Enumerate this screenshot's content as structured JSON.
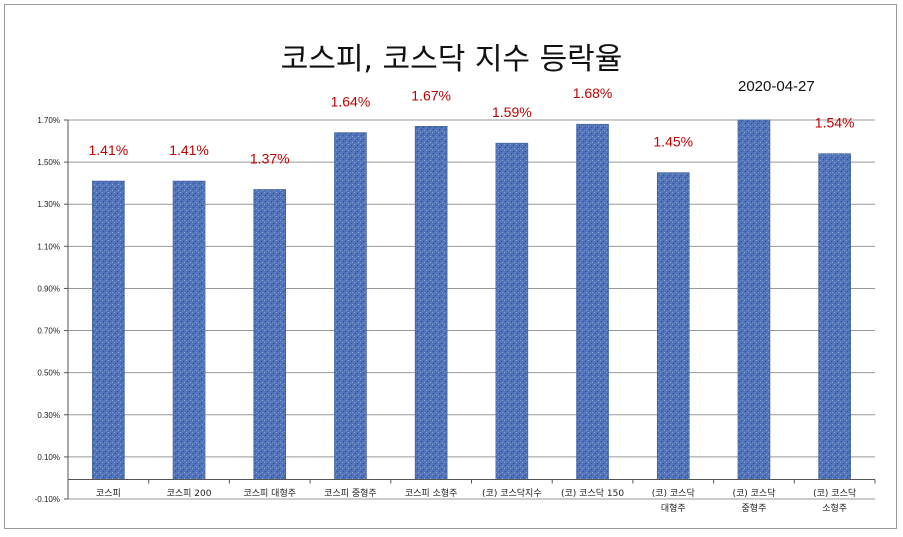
{
  "chart_data": {
    "type": "bar",
    "title": "코스피, 코스닥 지수 등락율",
    "subtitle": "2020-04-27",
    "xlabel": "",
    "ylabel": "",
    "ylim": [
      -0.1,
      1.7
    ],
    "y_ticks": [
      "-0.10%",
      "0.10%",
      "0.30%",
      "0.50%",
      "0.70%",
      "0.90%",
      "1.10%",
      "1.30%",
      "1.50%",
      "1.70%"
    ],
    "y_tick_values": [
      -0.1,
      0.1,
      0.3,
      0.5,
      0.7,
      0.9,
      1.1,
      1.3,
      1.5,
      1.7
    ],
    "categories": [
      [
        "코스피"
      ],
      [
        "코스피 200"
      ],
      [
        "코스피 대형주"
      ],
      [
        "코스피 중형주"
      ],
      [
        "코스피 소형주"
      ],
      [
        "(코) 코스닥지수"
      ],
      [
        "(코) 코스닥 150"
      ],
      [
        "(코) 코스닥",
        "대형주"
      ],
      [
        "(코) 코스닥",
        "중형주"
      ],
      [
        "(코) 코스닥",
        "소형주"
      ]
    ],
    "values": [
      1.41,
      1.41,
      1.37,
      1.64,
      1.67,
      1.59,
      1.68,
      1.45,
      1.7,
      1.54
    ],
    "data_labels": [
      "1.41%",
      "1.41%",
      "1.37%",
      "1.64%",
      "1.67%",
      "1.59%",
      "1.68%",
      "1.45%",
      "",
      "1.54%"
    ],
    "grid": true,
    "legend": "none",
    "colors": {
      "bar_fill": "#4f72b8",
      "bar_dark": "#2f4f8f",
      "bar_light": "#8fa8d8",
      "label": "#c00000",
      "grid": "#999999"
    }
  }
}
